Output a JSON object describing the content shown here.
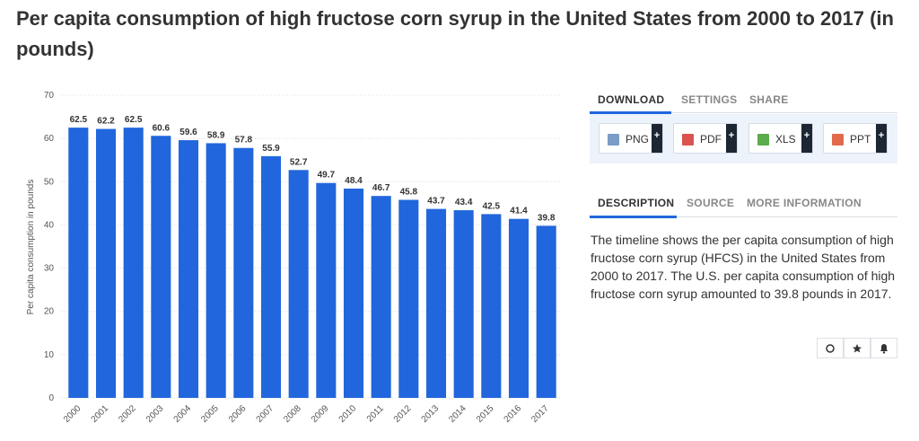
{
  "title": "Per capita consumption of high fructose corn syrup in the United States from 2000 to 2017 (in pounds)",
  "chart_data": {
    "type": "bar",
    "y_label": "Per capita consumption in pounds",
    "categories": [
      "2000",
      "2001",
      "2002",
      "2003",
      "2004",
      "2005",
      "2006",
      "2007",
      "2008",
      "2009",
      "2010",
      "2011",
      "2012",
      "2013",
      "2014",
      "2015",
      "2016",
      "2017"
    ],
    "values": [
      62.5,
      62.2,
      62.5,
      60.6,
      59.6,
      58.9,
      57.8,
      55.9,
      52.7,
      49.7,
      48.4,
      46.7,
      45.8,
      43.7,
      43.4,
      42.5,
      41.4,
      39.8
    ],
    "color": "#2166dc",
    "ylim": [
      0,
      70
    ],
    "yticks": [
      0,
      10,
      20,
      30,
      40,
      50,
      60,
      70
    ],
    "grid": true
  },
  "tabs": [
    "DOWNLOAD",
    "SETTINGS",
    "SHARE"
  ],
  "download_buttons": [
    "PNG",
    "PDF",
    "XLS",
    "PPT"
  ],
  "info_tabs": [
    "DESCRIPTION",
    "SOURCE",
    "MORE INFORMATION"
  ],
  "description": "The timeline shows the per capita consumption of high fructose corn syrup (HFCS) in the United States from 2000 to 2017. The U.S. per capita consumption of high fructose corn syrup amounted to 39.8 pounds in 2017."
}
